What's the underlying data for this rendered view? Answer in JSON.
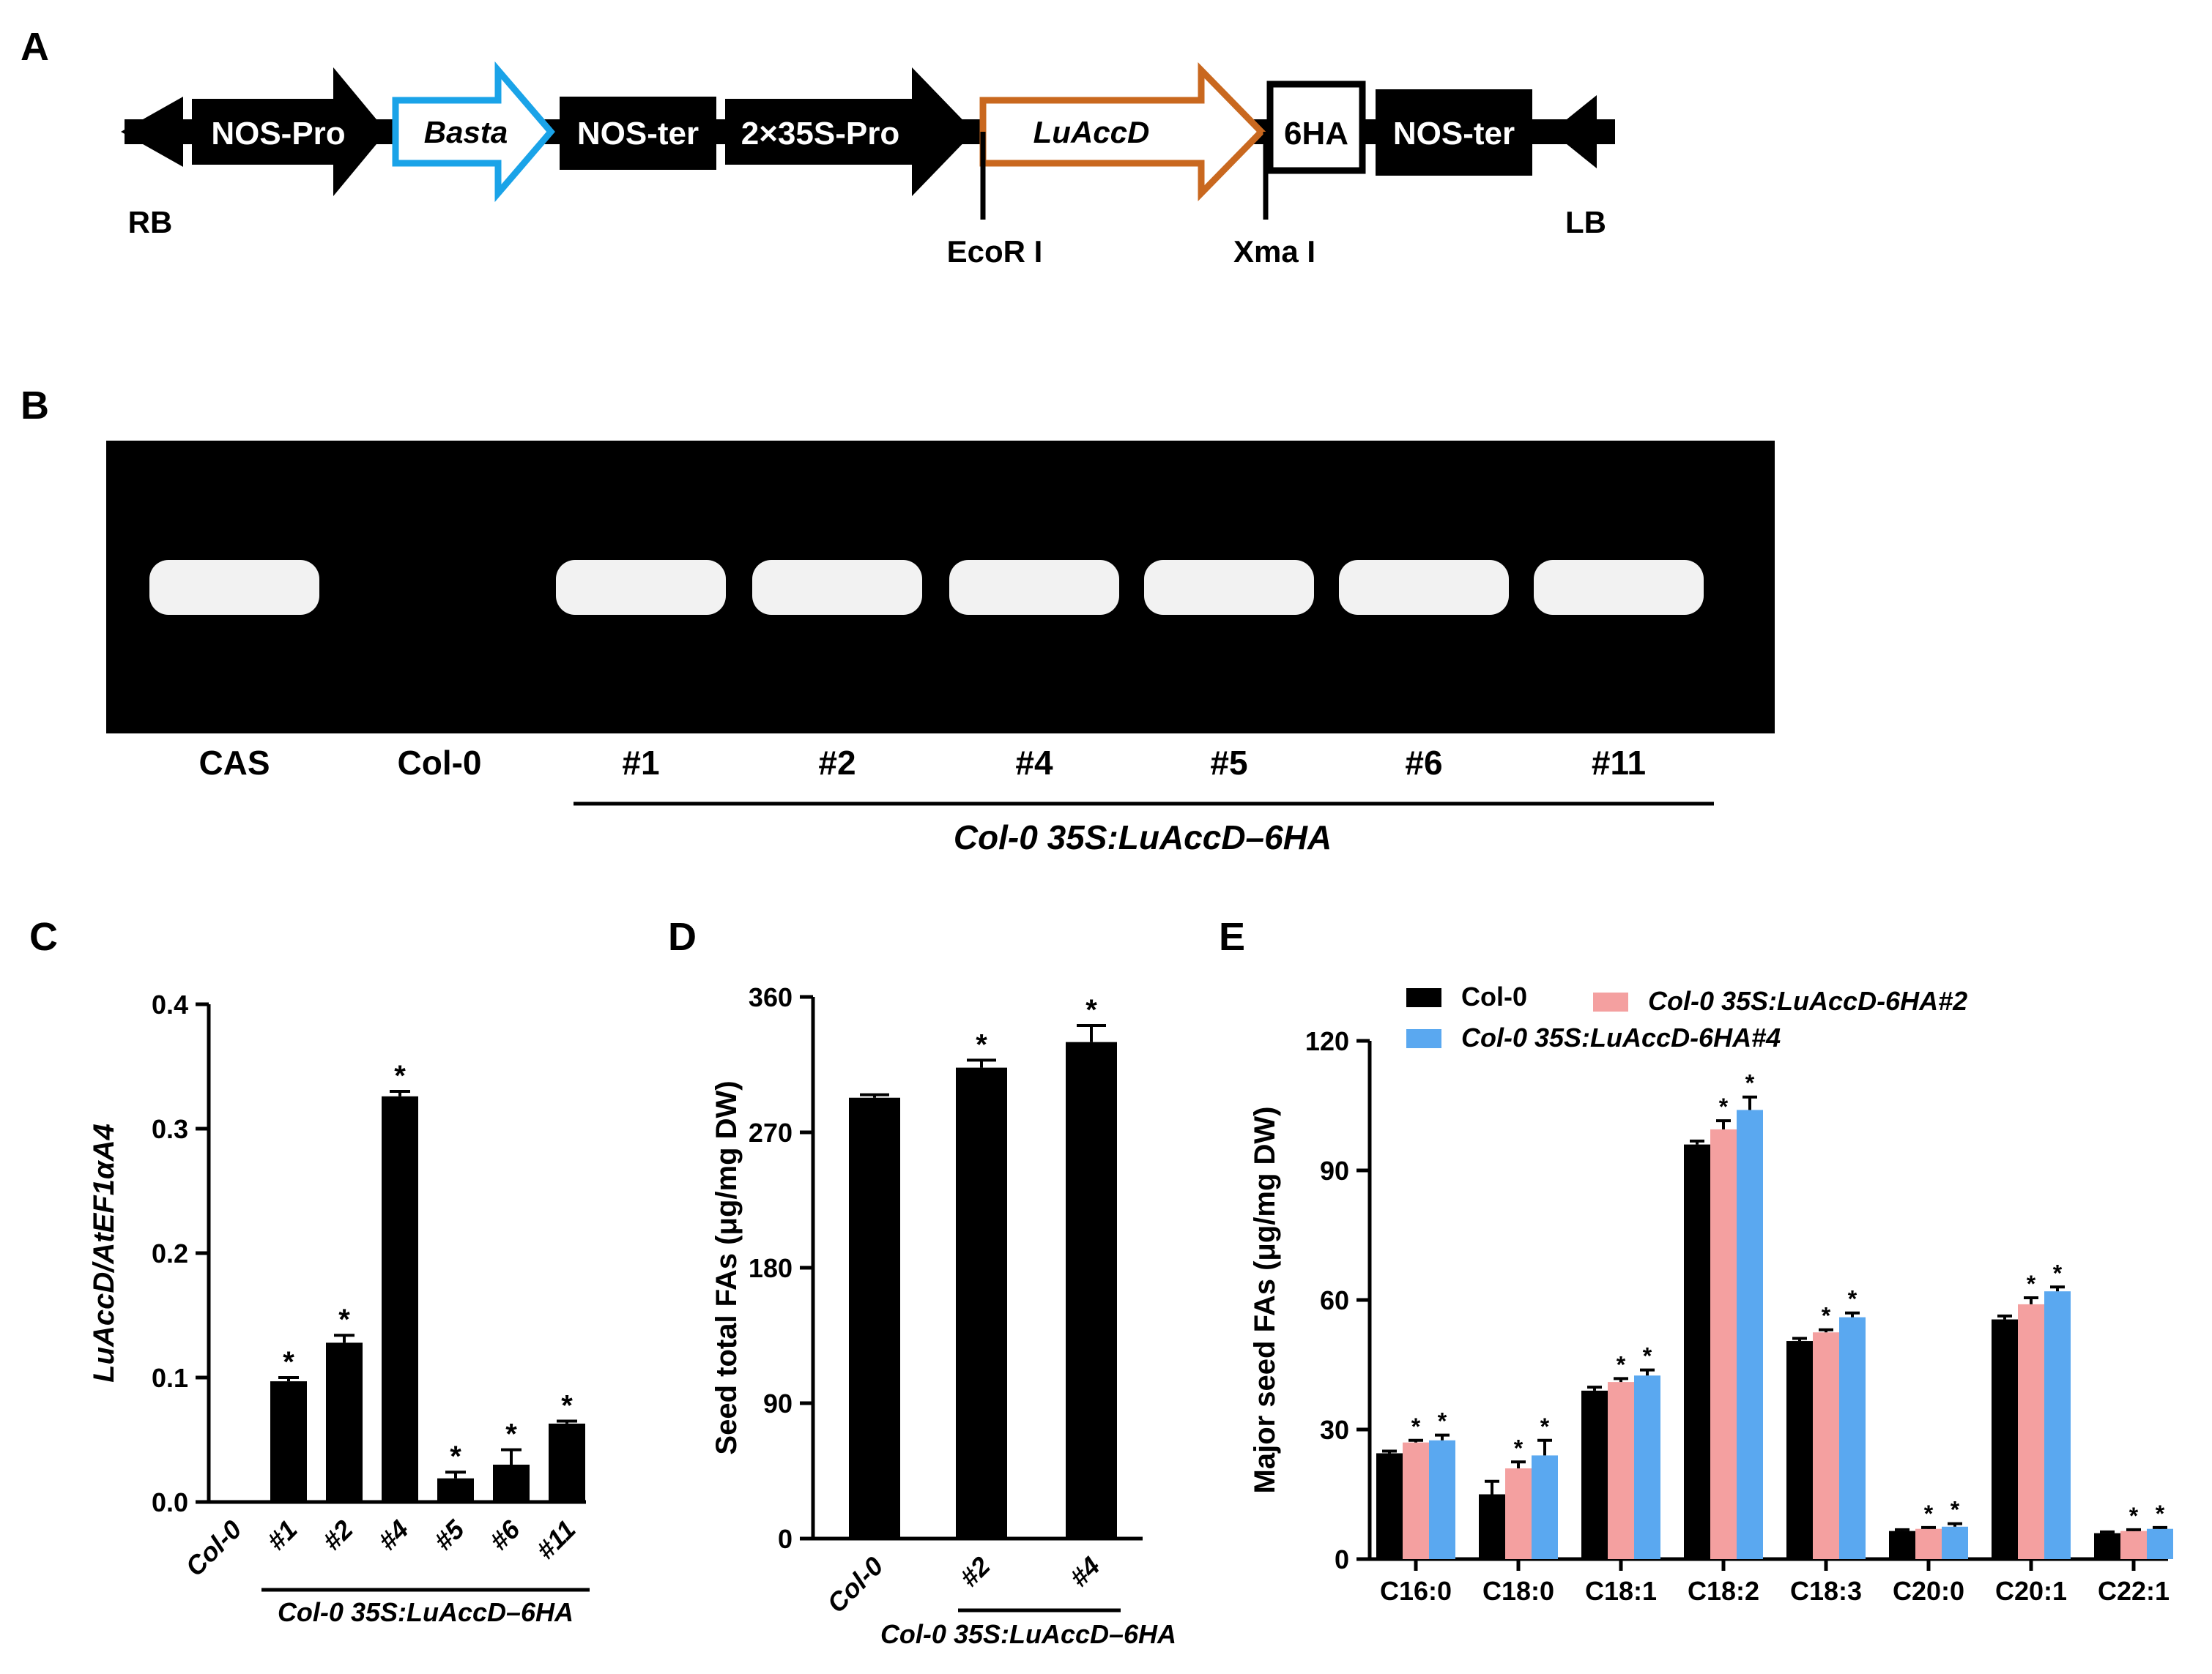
{
  "panels": {
    "A": {
      "letter": "A"
    },
    "B": {
      "letter": "B"
    },
    "C": {
      "letter": "C"
    },
    "D": {
      "letter": "D"
    },
    "E": {
      "letter": "E"
    }
  },
  "construct": {
    "elements": [
      {
        "label": "NOS-Pro",
        "style": "black-arrow-right"
      },
      {
        "label": "Basta",
        "style": "outline-arrow-right",
        "color": "#1aa3e8",
        "italic": true
      },
      {
        "label": "NOS-ter",
        "style": "black-box"
      },
      {
        "label": "2×35S-Pro",
        "style": "black-arrow-right"
      },
      {
        "label": "LuAccD",
        "style": "outline-arrow-right",
        "color": "#c9681f",
        "italic": true
      },
      {
        "label": "6HA",
        "style": "white-box"
      },
      {
        "label": "NOS-ter",
        "style": "black-box"
      }
    ],
    "borders": [
      "RB",
      "LB"
    ],
    "sites": [
      "EcoR I",
      "Xma I"
    ]
  },
  "gel": {
    "lanes": [
      "CAS",
      "Col-0",
      "#1",
      "#2",
      "#4",
      "#5",
      "#6",
      "#11"
    ],
    "band_present": [
      true,
      false,
      true,
      true,
      true,
      true,
      true,
      true
    ],
    "group_label": "Col-0 35S:LuAccD–6HA"
  },
  "chart_data": [
    {
      "panel": "C",
      "type": "bar",
      "categories": [
        "Col-0",
        "#1",
        "#2",
        "#4",
        "#5",
        "#6",
        "#11"
      ],
      "values": [
        0.0,
        0.097,
        0.128,
        0.326,
        0.019,
        0.03,
        0.063
      ],
      "errors": [
        0.0,
        0.003,
        0.006,
        0.004,
        0.005,
        0.012,
        0.002
      ],
      "significant": [
        false,
        true,
        true,
        true,
        true,
        true,
        true
      ],
      "ylabel": "LuAccD/AtEF1αA4",
      "ylim": [
        0,
        0.4
      ],
      "yticks": [
        "0.0",
        "0.1",
        "0.2",
        "0.3",
        "0.4"
      ],
      "group_label": "Col-0  35S:LuAccD–6HA",
      "bar_color": "#000000"
    },
    {
      "panel": "D",
      "type": "bar",
      "categories": [
        "Col-0",
        "#2",
        "#4"
      ],
      "values": [
        293,
        313,
        330
      ],
      "errors": [
        2,
        5,
        11
      ],
      "significant": [
        false,
        true,
        true
      ],
      "ylabel": "Seed total FAs (μg/mg DW)",
      "ylim": [
        0,
        360
      ],
      "yticks": [
        "0",
        "90",
        "180",
        "270",
        "360"
      ],
      "group_label": "Col-0 35S:LuAccD–6HA",
      "bar_color": "#000000"
    },
    {
      "panel": "E",
      "type": "bar",
      "categories": [
        "C16:0",
        "C18:0",
        "C18:1",
        "C18:2",
        "C18:3",
        "C20:0",
        "C20:1",
        "C22:1"
      ],
      "series": [
        {
          "name": "Col-0",
          "color": "#000000",
          "values": [
            24.5,
            15.0,
            39.0,
            96.0,
            50.5,
            6.5,
            55.5,
            6.0
          ],
          "errors": [
            0.5,
            3.0,
            0.8,
            0.8,
            0.6,
            0.3,
            0.8,
            0.3
          ],
          "significant": [
            false,
            false,
            false,
            false,
            false,
            false,
            false,
            false
          ]
        },
        {
          "name": "Col-0 35S:LuAccD-6HA#2",
          "color": "#f4a0a0",
          "values": [
            27.0,
            21.0,
            41.0,
            99.5,
            52.5,
            7.0,
            59.0,
            6.5
          ],
          "errors": [
            0.5,
            1.5,
            0.8,
            2.0,
            0.6,
            0.3,
            1.5,
            0.3
          ],
          "significant": [
            true,
            true,
            true,
            true,
            true,
            true,
            true,
            true
          ]
        },
        {
          "name": "Col-0 35S:LuAccD-6HA#4",
          "color": "#5aa8f0",
          "values": [
            27.5,
            24.0,
            42.5,
            104.0,
            56.0,
            7.5,
            62.0,
            7.0
          ],
          "errors": [
            1.2,
            3.5,
            1.3,
            3.0,
            1.0,
            0.7,
            1.0,
            0.3
          ],
          "significant": [
            true,
            true,
            true,
            true,
            true,
            true,
            true,
            true
          ]
        }
      ],
      "ylabel": "Major seed FAs (μg/mg DW)",
      "ylim": [
        0,
        120
      ],
      "yticks": [
        "0",
        "30",
        "60",
        "90",
        "120"
      ],
      "legend_position": "top-left"
    }
  ]
}
